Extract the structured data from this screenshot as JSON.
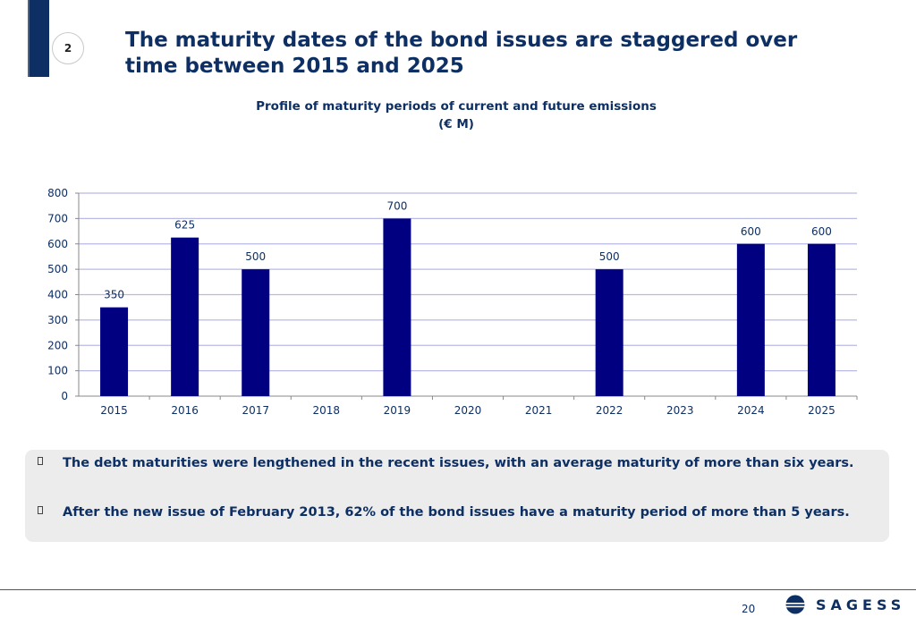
{
  "slide": {
    "section_number": "2",
    "title_lines": [
      "The maturity dates of the bond issues are staggered over",
      "time between 2015 and 2025"
    ],
    "page_number": "20",
    "logo_text": "SAGESS"
  },
  "chart_data": {
    "type": "bar",
    "title": "Profile of maturity periods of current and future emissions",
    "subtitle": "(€ M)",
    "categories": [
      "2015",
      "2016",
      "2017",
      "2018",
      "2019",
      "2020",
      "2021",
      "2022",
      "2023",
      "2024",
      "2025"
    ],
    "values": [
      350,
      625,
      500,
      null,
      700,
      null,
      null,
      500,
      null,
      600,
      600
    ],
    "data_labels": [
      "350",
      "625",
      "500",
      "",
      "700",
      "",
      "",
      "500",
      "",
      "600",
      "600"
    ],
    "ylim": [
      0,
      800
    ],
    "yticks": [
      0,
      100,
      200,
      300,
      400,
      500,
      600,
      700,
      800
    ],
    "ytick_labels": [
      "0",
      "100",
      "200",
      "300",
      "400",
      "500",
      "600",
      "700",
      "800"
    ],
    "grid": true,
    "legend": "none",
    "bar_color": "#000080",
    "grid_color": "#b9b9e6",
    "xlabel": "",
    "ylabel": ""
  },
  "notes": [
    "The debt maturities were lengthened in the recent issues, with an average maturity of more than six years.",
    "After the new issue of February 2013, 62% of the bond issues have a maturity period of more than 5 years."
  ],
  "colors": {
    "brand_navy": "#0d2f63",
    "note_bg": "#ececec"
  }
}
